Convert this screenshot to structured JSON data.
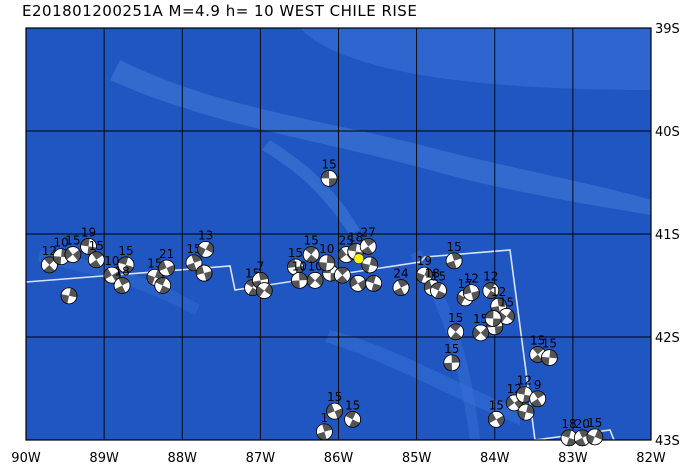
{
  "header": {
    "event_id": "E201801200251A",
    "magnitude": "M=4.9",
    "depth": "h= 10",
    "region": "WEST CHILE RISE"
  },
  "colors": {
    "ocean_deep": "#1f56c2",
    "ocean_shallow": "#3a72d8",
    "ridge": "#5a8fe2",
    "plate_boundary": "#d8e4f6",
    "grid": "#000000",
    "beachball_compressional": "#555555",
    "beachball_dilatational": "#ffffff",
    "current_event": "#ffee00"
  },
  "axes": {
    "longitude_labels": [
      "90W",
      "89W",
      "88W",
      "87W",
      "86W",
      "85W",
      "84W",
      "83W",
      "82W"
    ],
    "latitude_labels": [
      "39S",
      "40S",
      "41S",
      "42S",
      "43S"
    ],
    "lon_min": -90,
    "lon_max": -82,
    "lat_min": -43,
    "lat_max": -39
  },
  "current_event": {
    "lon": -85.74,
    "lat": -41.24
  },
  "events": [
    {
      "lon": -86.12,
      "lat": -40.46,
      "label": "15"
    },
    {
      "lon": -89.7,
      "lat": -41.3,
      "label": "12"
    },
    {
      "lon": -89.55,
      "lat": -41.22,
      "label": "10"
    },
    {
      "lon": -89.4,
      "lat": -41.2,
      "label": "15"
    },
    {
      "lon": -89.2,
      "lat": -41.12,
      "label": "19"
    },
    {
      "lon": -89.1,
      "lat": -41.25,
      "label": "15"
    },
    {
      "lon": -89.45,
      "lat": -41.6,
      "label": ""
    },
    {
      "lon": -88.9,
      "lat": -41.4,
      "label": "10"
    },
    {
      "lon": -88.72,
      "lat": -41.3,
      "label": "15"
    },
    {
      "lon": -88.77,
      "lat": -41.5,
      "label": "18"
    },
    {
      "lon": -88.35,
      "lat": -41.42,
      "label": "15"
    },
    {
      "lon": -88.2,
      "lat": -41.33,
      "label": "21"
    },
    {
      "lon": -88.25,
      "lat": -41.5,
      "label": ""
    },
    {
      "lon": -87.85,
      "lat": -41.28,
      "label": "15"
    },
    {
      "lon": -87.7,
      "lat": -41.15,
      "label": "13"
    },
    {
      "lon": -87.72,
      "lat": -41.38,
      "label": ""
    },
    {
      "lon": -87.1,
      "lat": -41.52,
      "label": "15"
    },
    {
      "lon": -87.0,
      "lat": -41.45,
      "label": "7"
    },
    {
      "lon": -86.95,
      "lat": -41.55,
      "label": ""
    },
    {
      "lon": -86.55,
      "lat": -41.32,
      "label": "15"
    },
    {
      "lon": -86.35,
      "lat": -41.2,
      "label": "15"
    },
    {
      "lon": -86.5,
      "lat": -41.45,
      "label": "10"
    },
    {
      "lon": -86.3,
      "lat": -41.45,
      "label": "10"
    },
    {
      "lon": -86.1,
      "lat": -41.38,
      "label": ""
    },
    {
      "lon": -85.95,
      "lat": -41.4,
      "label": ""
    },
    {
      "lon": -86.15,
      "lat": -41.28,
      "label": "10"
    },
    {
      "lon": -85.9,
      "lat": -41.2,
      "label": "25"
    },
    {
      "lon": -85.78,
      "lat": -41.17,
      "label": "18"
    },
    {
      "lon": -85.62,
      "lat": -41.12,
      "label": "27"
    },
    {
      "lon": -85.6,
      "lat": -41.3,
      "label": ""
    },
    {
      "lon": -85.75,
      "lat": -41.48,
      "label": ""
    },
    {
      "lon": -85.55,
      "lat": -41.48,
      "label": ""
    },
    {
      "lon": -85.2,
      "lat": -41.52,
      "label": "24"
    },
    {
      "lon": -84.9,
      "lat": -41.4,
      "label": "19"
    },
    {
      "lon": -84.8,
      "lat": -41.52,
      "label": "18"
    },
    {
      "lon": -84.72,
      "lat": -41.55,
      "label": "15"
    },
    {
      "lon": -84.52,
      "lat": -41.26,
      "label": "15"
    },
    {
      "lon": -84.38,
      "lat": -41.62,
      "label": "17"
    },
    {
      "lon": -84.3,
      "lat": -41.57,
      "label": "12"
    },
    {
      "lon": -84.05,
      "lat": -41.55,
      "label": "12"
    },
    {
      "lon": -83.95,
      "lat": -41.7,
      "label": "12"
    },
    {
      "lon": -83.85,
      "lat": -41.8,
      "label": "15"
    },
    {
      "lon": -84.0,
      "lat": -41.9,
      "label": ""
    },
    {
      "lon": -84.5,
      "lat": -41.95,
      "label": "15"
    },
    {
      "lon": -84.55,
      "lat": -42.25,
      "label": "15"
    },
    {
      "lon": -84.18,
      "lat": -41.96,
      "label": "15"
    },
    {
      "lon": -84.02,
      "lat": -41.82,
      "label": ""
    },
    {
      "lon": -83.45,
      "lat": -42.17,
      "label": "15"
    },
    {
      "lon": -83.3,
      "lat": -42.2,
      "label": "15"
    },
    {
      "lon": -83.75,
      "lat": -42.64,
      "label": "12"
    },
    {
      "lon": -83.62,
      "lat": -42.56,
      "label": "12"
    },
    {
      "lon": -83.45,
      "lat": -42.6,
      "label": "9"
    },
    {
      "lon": -83.6,
      "lat": -42.73,
      "label": ""
    },
    {
      "lon": -83.98,
      "lat": -42.8,
      "label": "15"
    },
    {
      "lon": -83.05,
      "lat": -42.98,
      "label": "18"
    },
    {
      "lon": -82.88,
      "lat": -42.98,
      "label": "20"
    },
    {
      "lon": -82.72,
      "lat": -42.97,
      "label": "15"
    },
    {
      "lon": -86.05,
      "lat": -42.72,
      "label": "15"
    },
    {
      "lon": -85.82,
      "lat": -42.8,
      "label": "15"
    },
    {
      "lon": -86.18,
      "lat": -42.92,
      "label": "1"
    }
  ]
}
